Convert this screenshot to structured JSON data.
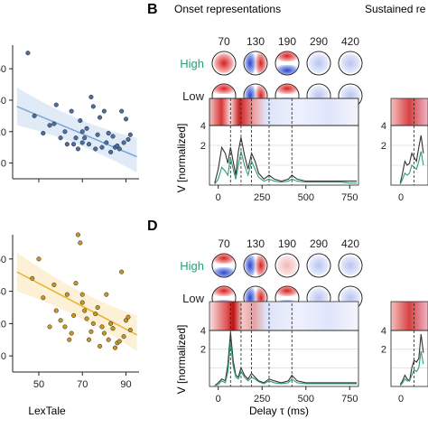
{
  "panel_b": {
    "letter": "B",
    "title": "Onset representations",
    "title_right": "Sustained re"
  },
  "panel_d": {
    "letter": "D"
  },
  "topo": {
    "latencies": [
      "70",
      "130",
      "190",
      "290",
      "420"
    ],
    "high_label": "High",
    "low_label": "Low",
    "high_color": "#2e9b79"
  },
  "axes": {
    "ylabel": "V [normalized]",
    "xlabel": "Delay τ (ms)",
    "scatter_xlabel": "LexTale",
    "ts_xticks": [
      "0",
      "250",
      "500",
      "750"
    ],
    "ts_yticks": [
      "2",
      "4"
    ]
  },
  "colors": {
    "blue_points": "#4a6fa5",
    "blue_line": "#7ba6d9",
    "orange_points": "#c89622",
    "orange_line": "#e6b22e"
  },
  "chart_data": [
    {
      "type": "scatter",
      "yticks": [
        "0",
        "20",
        "40",
        "60"
      ],
      "ylim": [
        -10,
        75
      ],
      "xlim": [
        38,
        96
      ],
      "fit": {
        "x": [
          40,
          95
        ],
        "y": [
          36,
          4
        ]
      },
      "points": [
        [
          45,
          70
        ],
        [
          48,
          30
        ],
        [
          52,
          19
        ],
        [
          55,
          24
        ],
        [
          57,
          25
        ],
        [
          58,
          37
        ],
        [
          60,
          16
        ],
        [
          62,
          20
        ],
        [
          63,
          12
        ],
        [
          65,
          33
        ],
        [
          66,
          12
        ],
        [
          67,
          16
        ],
        [
          68,
          9
        ],
        [
          69,
          27
        ],
        [
          70,
          20
        ],
        [
          70,
          13
        ],
        [
          71,
          16
        ],
        [
          72,
          22
        ],
        [
          73,
          12
        ],
        [
          74,
          42
        ],
        [
          75,
          36
        ],
        [
          76,
          9
        ],
        [
          77,
          18
        ],
        [
          78,
          29
        ],
        [
          79,
          10
        ],
        [
          80,
          33
        ],
        [
          81,
          13
        ],
        [
          82,
          19
        ],
        [
          83,
          7
        ],
        [
          84,
          17
        ],
        [
          85,
          10
        ],
        [
          86,
          11
        ],
        [
          87,
          9
        ],
        [
          88,
          33
        ],
        [
          89,
          13
        ],
        [
          90,
          28
        ],
        [
          91,
          15
        ],
        [
          92,
          18
        ]
      ]
    },
    {
      "type": "scatter",
      "xticks": [
        "50",
        "70",
        "90"
      ],
      "yticks": [
        "0",
        "20",
        "40",
        "60"
      ],
      "ylim": [
        -10,
        75
      ],
      "xlim": [
        38,
        96
      ],
      "fit": {
        "x": [
          40,
          95
        ],
        "y": [
          52,
          13
        ]
      },
      "points": [
        [
          47,
          48
        ],
        [
          50,
          60
        ],
        [
          52,
          36
        ],
        [
          55,
          18
        ],
        [
          57,
          44
        ],
        [
          58,
          28
        ],
        [
          60,
          22
        ],
        [
          62,
          18
        ],
        [
          63,
          38
        ],
        [
          64,
          10
        ],
        [
          65,
          14
        ],
        [
          66,
          25
        ],
        [
          67,
          45
        ],
        [
          68,
          75
        ],
        [
          69,
          70
        ],
        [
          70,
          38
        ],
        [
          70,
          33
        ],
        [
          71,
          28
        ],
        [
          72,
          23
        ],
        [
          73,
          10
        ],
        [
          74,
          15
        ],
        [
          75,
          20
        ],
        [
          76,
          26
        ],
        [
          77,
          30
        ],
        [
          78,
          6
        ],
        [
          79,
          18
        ],
        [
          80,
          14
        ],
        [
          81,
          38
        ],
        [
          82,
          10
        ],
        [
          83,
          20
        ],
        [
          84,
          17
        ],
        [
          85,
          5
        ],
        [
          86,
          8
        ],
        [
          87,
          9
        ],
        [
          88,
          52
        ],
        [
          89,
          12
        ],
        [
          90,
          22
        ],
        [
          91,
          24
        ],
        [
          92,
          16
        ]
      ]
    },
    {
      "type": "line",
      "xlim": [
        -50,
        800
      ],
      "ylim": [
        0,
        3
      ],
      "series": [
        {
          "color": "#333333",
          "x": [
            -20,
            0,
            20,
            40,
            55,
            70,
            85,
            100,
            115,
            130,
            150,
            170,
            190,
            210,
            230,
            260,
            290,
            320,
            360,
            400,
            420,
            450,
            500,
            550,
            600,
            650,
            700,
            750,
            790
          ],
          "y": [
            0.1,
            0.8,
            1.9,
            1.6,
            1.1,
            1.9,
            1.2,
            0.5,
            1.7,
            2.4,
            1.5,
            0.8,
            1.6,
            1.2,
            0.6,
            0.3,
            0.5,
            0.3,
            0.2,
            0.3,
            0.5,
            0.3,
            0.2,
            0.2,
            0.2,
            0.2,
            0.2,
            0.2,
            0.2
          ]
        },
        {
          "color": "#2e9b79",
          "x": [
            -20,
            0,
            20,
            40,
            55,
            70,
            85,
            100,
            115,
            130,
            150,
            170,
            190,
            210,
            230,
            260,
            290,
            320,
            360,
            400,
            420,
            450,
            500,
            550,
            600,
            650,
            700,
            750,
            790
          ],
          "y": [
            0.05,
            0.3,
            0.9,
            0.7,
            0.5,
            1.4,
            0.8,
            0.3,
            1.0,
            1.7,
            1.0,
            0.5,
            1.2,
            0.8,
            0.4,
            0.2,
            0.3,
            0.2,
            0.15,
            0.2,
            0.3,
            0.2,
            0.15,
            0.15,
            0.15,
            0.15,
            0.15,
            0.1,
            0.1
          ]
        }
      ]
    },
    {
      "type": "line",
      "xlim": [
        -50,
        800
      ],
      "ylim": [
        0,
        3
      ],
      "series": [
        {
          "color": "#333333",
          "x": [
            -20,
            0,
            20,
            40,
            55,
            70,
            85,
            100,
            115,
            130,
            150,
            170,
            190,
            210,
            230,
            260,
            290,
            320,
            360,
            400,
            420,
            450,
            500,
            550,
            600,
            650,
            700,
            750,
            790
          ],
          "y": [
            0.05,
            0.2,
            0.4,
            0.3,
            1.2,
            2.9,
            1.4,
            0.6,
            0.5,
            1.0,
            0.6,
            0.4,
            0.7,
            0.5,
            0.3,
            0.2,
            0.4,
            0.3,
            0.2,
            0.3,
            0.6,
            0.3,
            0.2,
            0.2,
            0.2,
            0.2,
            0.2,
            0.2,
            0.2
          ]
        },
        {
          "color": "#2e9b79",
          "x": [
            -20,
            0,
            20,
            40,
            55,
            70,
            85,
            100,
            115,
            130,
            150,
            170,
            190,
            210,
            230,
            260,
            290,
            320,
            360,
            400,
            420,
            450,
            500,
            550,
            600,
            650,
            700,
            750,
            790
          ],
          "y": [
            0.05,
            0.1,
            0.3,
            0.2,
            0.8,
            2.4,
            1.1,
            0.5,
            0.4,
            0.8,
            0.5,
            0.3,
            0.5,
            0.4,
            0.25,
            0.15,
            0.3,
            0.2,
            0.15,
            0.2,
            0.4,
            0.2,
            0.15,
            0.15,
            0.15,
            0.15,
            0.15,
            0.15,
            0.15
          ]
        }
      ]
    },
    {
      "type": "line",
      "xlim": [
        -20,
        60
      ],
      "ylim": [
        0,
        3
      ],
      "series": [
        {
          "color": "#333333",
          "x": [
            0,
            5,
            10,
            15,
            20,
            25,
            30,
            35,
            40,
            45,
            50
          ],
          "y": [
            0.1,
            0.6,
            1.2,
            1.0,
            1.1,
            1.6,
            1.4,
            1.2,
            1.9,
            2.5,
            1.6
          ]
        },
        {
          "color": "#2e9b79",
          "x": [
            0,
            5,
            10,
            15,
            20,
            25,
            30,
            35,
            40,
            45,
            50
          ],
          "y": [
            0.05,
            0.3,
            0.6,
            0.5,
            0.6,
            1.0,
            0.9,
            0.8,
            1.2,
            1.7,
            1.0
          ]
        }
      ]
    },
    {
      "type": "line",
      "xlim": [
        -20,
        60
      ],
      "ylim": [
        0,
        3
      ],
      "series": [
        {
          "color": "#333333",
          "x": [
            0,
            5,
            10,
            15,
            20,
            25,
            30,
            35,
            40,
            45,
            50
          ],
          "y": [
            0.1,
            0.3,
            0.6,
            0.4,
            0.3,
            1.0,
            1.4,
            1.3,
            1.5,
            2.8,
            1.8
          ]
        },
        {
          "color": "#2e9b79",
          "x": [
            0,
            5,
            10,
            15,
            20,
            25,
            30,
            35,
            40,
            45,
            50
          ],
          "y": [
            0.05,
            0.2,
            0.4,
            0.3,
            0.3,
            0.6,
            0.9,
            0.8,
            1.0,
            1.9,
            1.2
          ]
        }
      ]
    }
  ]
}
